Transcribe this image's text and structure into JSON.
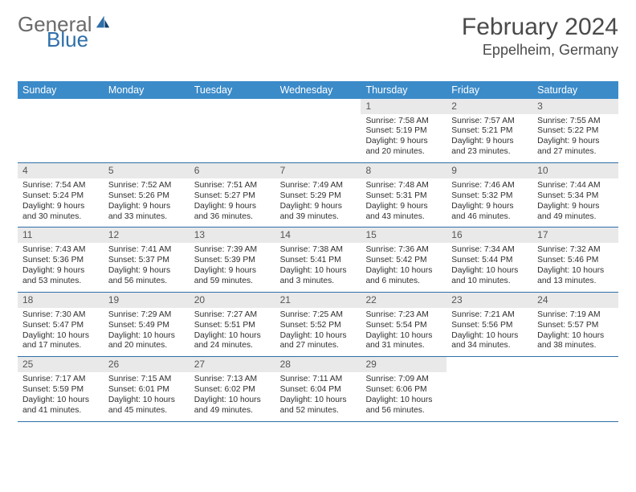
{
  "brand": {
    "part1": "General",
    "part2": "Blue"
  },
  "header": {
    "month_title": "February 2024",
    "location": "Eppelheim, Germany"
  },
  "colors": {
    "header_bar": "#3b8bc9",
    "week_divider": "#2f6fa9",
    "daynum_bg": "#e9e9e9",
    "text": "#333333",
    "logo_gray": "#6a6a6a",
    "logo_blue": "#2f6fa9",
    "background": "#ffffff"
  },
  "weekdays": [
    "Sunday",
    "Monday",
    "Tuesday",
    "Wednesday",
    "Thursday",
    "Friday",
    "Saturday"
  ],
  "weeks": [
    [
      {
        "n": "",
        "sr": "",
        "ss": "",
        "d1": "",
        "d2": ""
      },
      {
        "n": "",
        "sr": "",
        "ss": "",
        "d1": "",
        "d2": ""
      },
      {
        "n": "",
        "sr": "",
        "ss": "",
        "d1": "",
        "d2": ""
      },
      {
        "n": "",
        "sr": "",
        "ss": "",
        "d1": "",
        "d2": ""
      },
      {
        "n": "1",
        "sr": "Sunrise: 7:58 AM",
        "ss": "Sunset: 5:19 PM",
        "d1": "Daylight: 9 hours",
        "d2": "and 20 minutes."
      },
      {
        "n": "2",
        "sr": "Sunrise: 7:57 AM",
        "ss": "Sunset: 5:21 PM",
        "d1": "Daylight: 9 hours",
        "d2": "and 23 minutes."
      },
      {
        "n": "3",
        "sr": "Sunrise: 7:55 AM",
        "ss": "Sunset: 5:22 PM",
        "d1": "Daylight: 9 hours",
        "d2": "and 27 minutes."
      }
    ],
    [
      {
        "n": "4",
        "sr": "Sunrise: 7:54 AM",
        "ss": "Sunset: 5:24 PM",
        "d1": "Daylight: 9 hours",
        "d2": "and 30 minutes."
      },
      {
        "n": "5",
        "sr": "Sunrise: 7:52 AM",
        "ss": "Sunset: 5:26 PM",
        "d1": "Daylight: 9 hours",
        "d2": "and 33 minutes."
      },
      {
        "n": "6",
        "sr": "Sunrise: 7:51 AM",
        "ss": "Sunset: 5:27 PM",
        "d1": "Daylight: 9 hours",
        "d2": "and 36 minutes."
      },
      {
        "n": "7",
        "sr": "Sunrise: 7:49 AM",
        "ss": "Sunset: 5:29 PM",
        "d1": "Daylight: 9 hours",
        "d2": "and 39 minutes."
      },
      {
        "n": "8",
        "sr": "Sunrise: 7:48 AM",
        "ss": "Sunset: 5:31 PM",
        "d1": "Daylight: 9 hours",
        "d2": "and 43 minutes."
      },
      {
        "n": "9",
        "sr": "Sunrise: 7:46 AM",
        "ss": "Sunset: 5:32 PM",
        "d1": "Daylight: 9 hours",
        "d2": "and 46 minutes."
      },
      {
        "n": "10",
        "sr": "Sunrise: 7:44 AM",
        "ss": "Sunset: 5:34 PM",
        "d1": "Daylight: 9 hours",
        "d2": "and 49 minutes."
      }
    ],
    [
      {
        "n": "11",
        "sr": "Sunrise: 7:43 AM",
        "ss": "Sunset: 5:36 PM",
        "d1": "Daylight: 9 hours",
        "d2": "and 53 minutes."
      },
      {
        "n": "12",
        "sr": "Sunrise: 7:41 AM",
        "ss": "Sunset: 5:37 PM",
        "d1": "Daylight: 9 hours",
        "d2": "and 56 minutes."
      },
      {
        "n": "13",
        "sr": "Sunrise: 7:39 AM",
        "ss": "Sunset: 5:39 PM",
        "d1": "Daylight: 9 hours",
        "d2": "and 59 minutes."
      },
      {
        "n": "14",
        "sr": "Sunrise: 7:38 AM",
        "ss": "Sunset: 5:41 PM",
        "d1": "Daylight: 10 hours",
        "d2": "and 3 minutes."
      },
      {
        "n": "15",
        "sr": "Sunrise: 7:36 AM",
        "ss": "Sunset: 5:42 PM",
        "d1": "Daylight: 10 hours",
        "d2": "and 6 minutes."
      },
      {
        "n": "16",
        "sr": "Sunrise: 7:34 AM",
        "ss": "Sunset: 5:44 PM",
        "d1": "Daylight: 10 hours",
        "d2": "and 10 minutes."
      },
      {
        "n": "17",
        "sr": "Sunrise: 7:32 AM",
        "ss": "Sunset: 5:46 PM",
        "d1": "Daylight: 10 hours",
        "d2": "and 13 minutes."
      }
    ],
    [
      {
        "n": "18",
        "sr": "Sunrise: 7:30 AM",
        "ss": "Sunset: 5:47 PM",
        "d1": "Daylight: 10 hours",
        "d2": "and 17 minutes."
      },
      {
        "n": "19",
        "sr": "Sunrise: 7:29 AM",
        "ss": "Sunset: 5:49 PM",
        "d1": "Daylight: 10 hours",
        "d2": "and 20 minutes."
      },
      {
        "n": "20",
        "sr": "Sunrise: 7:27 AM",
        "ss": "Sunset: 5:51 PM",
        "d1": "Daylight: 10 hours",
        "d2": "and 24 minutes."
      },
      {
        "n": "21",
        "sr": "Sunrise: 7:25 AM",
        "ss": "Sunset: 5:52 PM",
        "d1": "Daylight: 10 hours",
        "d2": "and 27 minutes."
      },
      {
        "n": "22",
        "sr": "Sunrise: 7:23 AM",
        "ss": "Sunset: 5:54 PM",
        "d1": "Daylight: 10 hours",
        "d2": "and 31 minutes."
      },
      {
        "n": "23",
        "sr": "Sunrise: 7:21 AM",
        "ss": "Sunset: 5:56 PM",
        "d1": "Daylight: 10 hours",
        "d2": "and 34 minutes."
      },
      {
        "n": "24",
        "sr": "Sunrise: 7:19 AM",
        "ss": "Sunset: 5:57 PM",
        "d1": "Daylight: 10 hours",
        "d2": "and 38 minutes."
      }
    ],
    [
      {
        "n": "25",
        "sr": "Sunrise: 7:17 AM",
        "ss": "Sunset: 5:59 PM",
        "d1": "Daylight: 10 hours",
        "d2": "and 41 minutes."
      },
      {
        "n": "26",
        "sr": "Sunrise: 7:15 AM",
        "ss": "Sunset: 6:01 PM",
        "d1": "Daylight: 10 hours",
        "d2": "and 45 minutes."
      },
      {
        "n": "27",
        "sr": "Sunrise: 7:13 AM",
        "ss": "Sunset: 6:02 PM",
        "d1": "Daylight: 10 hours",
        "d2": "and 49 minutes."
      },
      {
        "n": "28",
        "sr": "Sunrise: 7:11 AM",
        "ss": "Sunset: 6:04 PM",
        "d1": "Daylight: 10 hours",
        "d2": "and 52 minutes."
      },
      {
        "n": "29",
        "sr": "Sunrise: 7:09 AM",
        "ss": "Sunset: 6:06 PM",
        "d1": "Daylight: 10 hours",
        "d2": "and 56 minutes."
      },
      {
        "n": "",
        "sr": "",
        "ss": "",
        "d1": "",
        "d2": ""
      },
      {
        "n": "",
        "sr": "",
        "ss": "",
        "d1": "",
        "d2": ""
      }
    ]
  ]
}
